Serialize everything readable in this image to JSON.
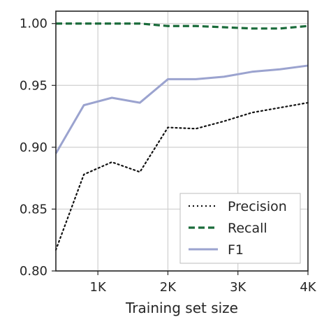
{
  "chart_data": {
    "type": "line",
    "title": "",
    "xlabel": "Training set size",
    "ylabel": "",
    "xlim": [
      400,
      4000
    ],
    "ylim": [
      0.8,
      1.01
    ],
    "grid": true,
    "legend_position": "lower-right",
    "x_ticks": [
      {
        "value": 1000,
        "label": "1K"
      },
      {
        "value": 2000,
        "label": "2K"
      },
      {
        "value": 3000,
        "label": "3K"
      },
      {
        "value": 4000,
        "label": "4K"
      }
    ],
    "y_ticks": [
      {
        "value": 0.8,
        "label": "0.80"
      },
      {
        "value": 0.85,
        "label": "0.85"
      },
      {
        "value": 0.9,
        "label": "0.90"
      },
      {
        "value": 0.95,
        "label": "0.95"
      },
      {
        "value": 1.0,
        "label": "1.00"
      }
    ],
    "x": [
      400,
      800,
      1200,
      1600,
      2000,
      2400,
      2800,
      3200,
      3600,
      4000
    ],
    "series": [
      {
        "name": "Precision",
        "style": "dotted",
        "color": "#111111",
        "values": [
          0.817,
          0.878,
          0.888,
          0.88,
          0.916,
          0.915,
          0.921,
          0.928,
          0.932,
          0.936
        ]
      },
      {
        "name": "Recall",
        "style": "dashed",
        "color": "#1a6b3a",
        "values": [
          1.0,
          1.0,
          1.0,
          1.0,
          0.998,
          0.998,
          0.997,
          0.996,
          0.996,
          0.998
        ]
      },
      {
        "name": "F1",
        "style": "solid",
        "color": "#9ba3cf",
        "values": [
          0.895,
          0.934,
          0.94,
          0.936,
          0.955,
          0.955,
          0.957,
          0.961,
          0.963,
          0.966
        ]
      }
    ]
  }
}
